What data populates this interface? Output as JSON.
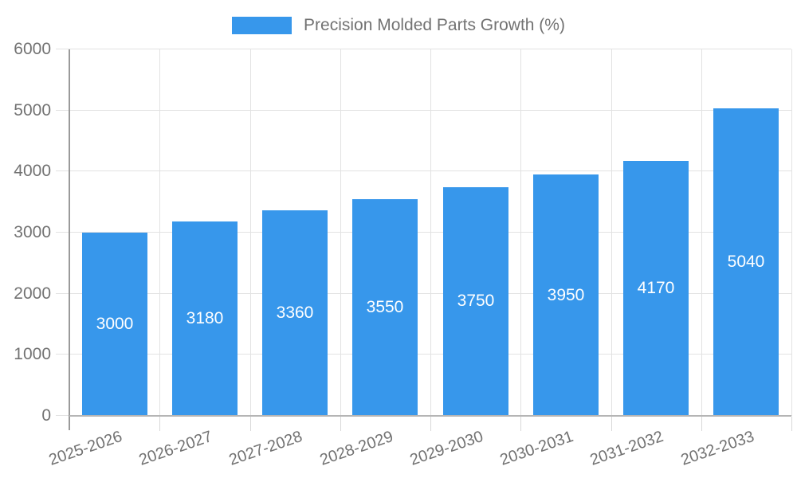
{
  "chart_data": {
    "type": "bar",
    "title": "Precision Molded Parts Growth (%)",
    "legend": [
      "Precision Molded Parts Growth (%)"
    ],
    "legend_position": "top-center",
    "categories": [
      "2025-2026",
      "2026-2027",
      "2027-2028",
      "2028-2029",
      "2029-2030",
      "2030-2031",
      "2031-2032",
      "2032-2033"
    ],
    "values": [
      3000,
      3180,
      3360,
      3550,
      3750,
      3950,
      4170,
      5040
    ],
    "xlabel": "",
    "ylabel": "",
    "ylim": [
      0,
      6000
    ],
    "yticks": [
      0,
      1000,
      2000,
      3000,
      4000,
      5000,
      6000
    ],
    "grid": true,
    "x_label_rotation_deg": -19,
    "colors": {
      "bar": "#3797EB",
      "bar_label": "#ffffff",
      "text": "#727272",
      "grid": "#e2e2e2",
      "x_axis": "#b5b5b5",
      "y_axis": "#9a9a9a",
      "background": "#ffffff"
    }
  }
}
